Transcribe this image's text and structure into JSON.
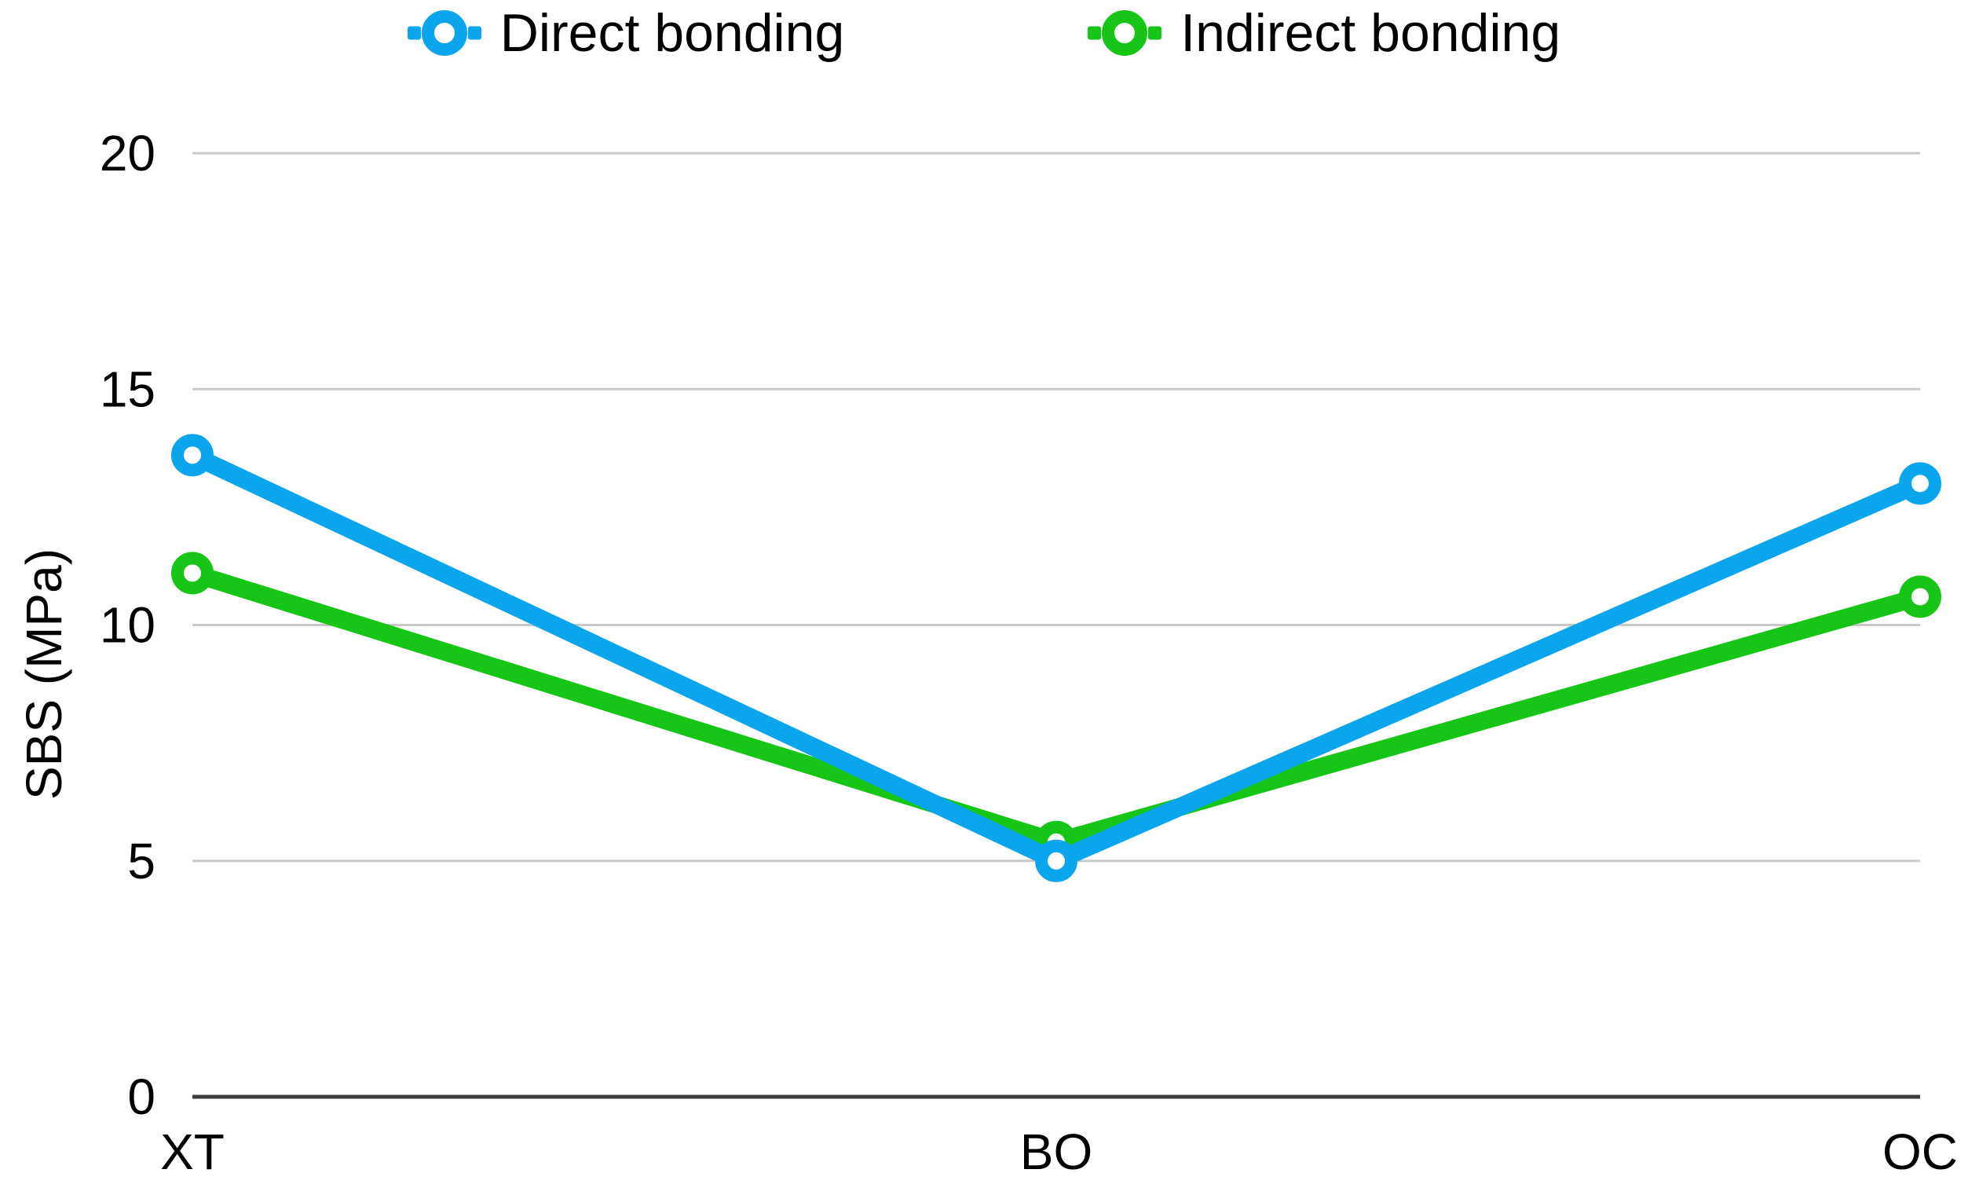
{
  "chart_data": {
    "type": "line",
    "title": "",
    "categories": [
      "XT",
      "BO",
      "OC"
    ],
    "series": [
      {
        "name": "Direct bonding",
        "color": "#0ba5ed",
        "values": [
          13.6,
          5.0,
          13.0
        ]
      },
      {
        "name": "Indirect bonding",
        "color": "#17c517",
        "values": [
          11.1,
          5.4,
          10.6
        ]
      }
    ],
    "xlabel": "",
    "ylabel": "SBS (MPa)",
    "yticks": [
      0,
      5,
      10,
      15,
      20
    ],
    "ylim": [
      0,
      20
    ],
    "grid": true,
    "legend_position": "top",
    "colors": {
      "gridline": "#c9c9c9",
      "axis_line": "#3d3d3d",
      "text": "#000000",
      "marker_fill": "#ffffff"
    }
  }
}
